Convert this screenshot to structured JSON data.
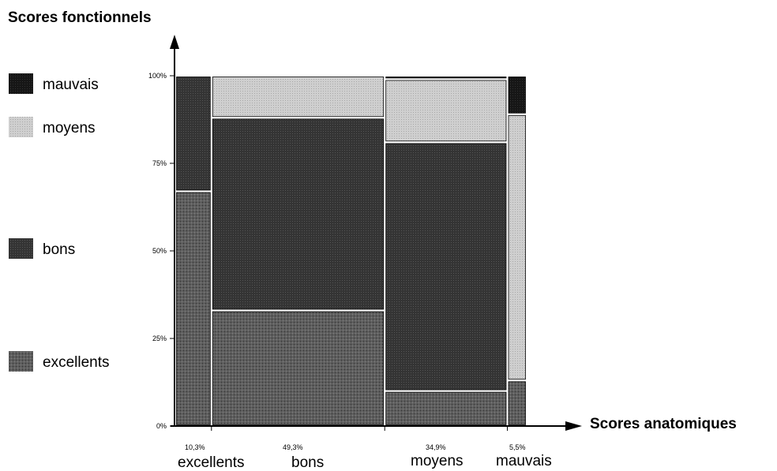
{
  "chart_data": {
    "type": "mosaic",
    "ylabel": "Scores fonctionnels",
    "xlabel": "Scores anatomiques",
    "ylim": [
      0,
      100
    ],
    "y_ticks": [
      "0%",
      "25%",
      "50%",
      "75%",
      "100%"
    ],
    "legend": [
      {
        "name": "mauvais",
        "color": "#1c1c1c"
      },
      {
        "name": "moyens",
        "color": "#c9c9c9"
      },
      {
        "name": "bons",
        "color": "#2e2e2e"
      },
      {
        "name": "excellents",
        "color": "#5a5a5a"
      }
    ],
    "columns": [
      {
        "category": "excellents",
        "share_label": "10,3%",
        "share": 10.3,
        "segments": {
          "excellents": 67,
          "bons": 33,
          "moyens": 0,
          "mauvais": 0
        }
      },
      {
        "category": "bons",
        "share_label": "49,3%",
        "share": 49.3,
        "segments": {
          "excellents": 33,
          "bons": 55,
          "moyens": 12,
          "mauvais": 0
        }
      },
      {
        "category": "moyens",
        "share_label": "34,9%",
        "share": 34.9,
        "segments": {
          "excellents": 10,
          "bons": 71,
          "moyens": 18,
          "mauvais": 1
        }
      },
      {
        "category": "mauvais",
        "share_label": "5,5%",
        "share": 5.5,
        "segments": {
          "excellents": 13,
          "bons": 0,
          "moyens": 76,
          "mauvais": 11
        }
      }
    ]
  }
}
